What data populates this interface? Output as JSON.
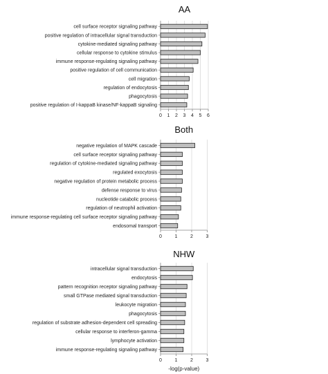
{
  "chart_data": [
    {
      "type": "bar",
      "orientation": "horizontal",
      "title": "AA",
      "categories": [
        "cell surface receptor signaling pathway",
        "positive regulation of intracellular signal transduction",
        "cytokine-mediated signaling pathway",
        "cellular response to cytokine stimulus",
        "immune response-regulating signaling pathway",
        "positive regulation of cell communication",
        "cell migration",
        "regulation of endocytosis",
        "phagocytosis",
        "positive regulation of I-kappaB kinase/NF-kappaB signaling"
      ],
      "values": [
        5.9,
        5.6,
        5.2,
        5.0,
        4.7,
        4.1,
        3.6,
        3.5,
        3.4,
        3.3
      ],
      "xlim": [
        0,
        6
      ],
      "xticks": [
        0,
        1,
        2,
        3,
        4,
        5,
        6
      ],
      "xlabel": "",
      "grid": true,
      "bar_color": "#c0c0c0"
    },
    {
      "type": "bar",
      "orientation": "horizontal",
      "title": "Both",
      "categories": [
        "negative regulation of MAPK cascade",
        "cell surface receptor signaling pathway",
        "regulation of cytokine-mediated signaling pathway",
        "regulated exocytosis",
        "negative regulation of protein metabolic process",
        "defense response to virus",
        "nucleotide catabolic process",
        "regulation of neutrophil activation",
        "immune response-regulating cell surface receptor signaling pathway",
        "endosomal transport"
      ],
      "values": [
        2.2,
        1.4,
        1.4,
        1.4,
        1.4,
        1.35,
        1.3,
        1.3,
        1.15,
        1.1
      ],
      "xlim": [
        0,
        3
      ],
      "xticks": [
        0,
        1,
        2,
        3
      ],
      "xlabel": "",
      "grid": true,
      "bar_color": "#c0c0c0"
    },
    {
      "type": "bar",
      "orientation": "horizontal",
      "title": "NHW",
      "categories": [
        "intracellular signal transduction",
        "endocytosis",
        "pattern recognition receptor signaling pathway",
        "small GTPase mediated signal transduction",
        "leukocyte migration",
        "phagocytosis",
        "regulation of substrate adhesion-dependent cell spreading",
        "cellular response to interferon-gamma",
        "lymphocyte activation",
        "immune response-regulating signaling pathway"
      ],
      "values": [
        2.1,
        2.05,
        1.7,
        1.65,
        1.6,
        1.6,
        1.55,
        1.5,
        1.5,
        1.45
      ],
      "xlim": [
        0,
        3
      ],
      "xticks": [
        0,
        1,
        2,
        3
      ],
      "xlabel": "-log(p-value)",
      "grid": true,
      "bar_color": "#c0c0c0"
    }
  ]
}
